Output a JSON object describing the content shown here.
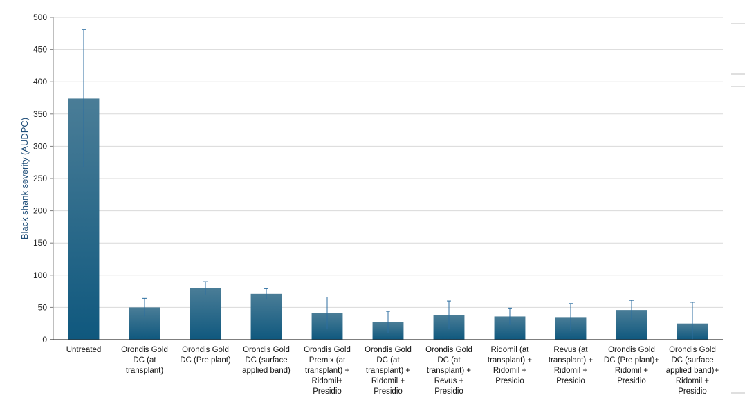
{
  "chart_data": {
    "type": "bar",
    "title": "",
    "xlabel": "",
    "ylabel": "Black shank severity (AUDPC)",
    "ylim": [
      0,
      500
    ],
    "yticks": [
      0,
      50,
      100,
      150,
      200,
      250,
      300,
      350,
      400,
      450,
      500
    ],
    "grid": true,
    "categories": [
      [
        "Untreated"
      ],
      [
        "Orondis Gold",
        "DC (at",
        "transplant)"
      ],
      [
        "Orondis Gold",
        "DC (Pre plant)"
      ],
      [
        "Orondis Gold",
        "DC (surface",
        "applied band)"
      ],
      [
        "Orondis Gold",
        "Premix (at",
        "transplant) +",
        "Ridomil+",
        "Presidio"
      ],
      [
        "Orondis Gold",
        "DC (at",
        "transplant) +",
        "Ridomil +",
        "Presidio"
      ],
      [
        "Orondis Gold",
        "DC (at",
        "transplant) +",
        "Revus +",
        "Presidio"
      ],
      [
        "Ridomil (at",
        "transplant) +",
        "Ridomil +",
        "Presidio"
      ],
      [
        "Revus (at",
        "transplant) +",
        "Ridomil +",
        "Presidio"
      ],
      [
        "Orondis Gold",
        "DC (Pre plant)+",
        "Ridomil +",
        "Presidio"
      ],
      [
        "Orondis Gold",
        "DC (surface",
        "applied band)+",
        "Ridomil +",
        "Presidio"
      ]
    ],
    "values": [
      374,
      50,
      80,
      71,
      41,
      27,
      38,
      36,
      35,
      46,
      25
    ],
    "error": [
      107,
      14,
      10,
      8,
      25,
      17,
      22,
      13,
      21,
      15,
      33
    ],
    "colors": {
      "bar_top": "#4a7d97",
      "bar_bottom": "#0f587e",
      "error_bar": "#2c6ea0",
      "ylabel": "#1f4e79",
      "grid": "#d9d9d9",
      "axis": "#7f7f7f"
    }
  }
}
